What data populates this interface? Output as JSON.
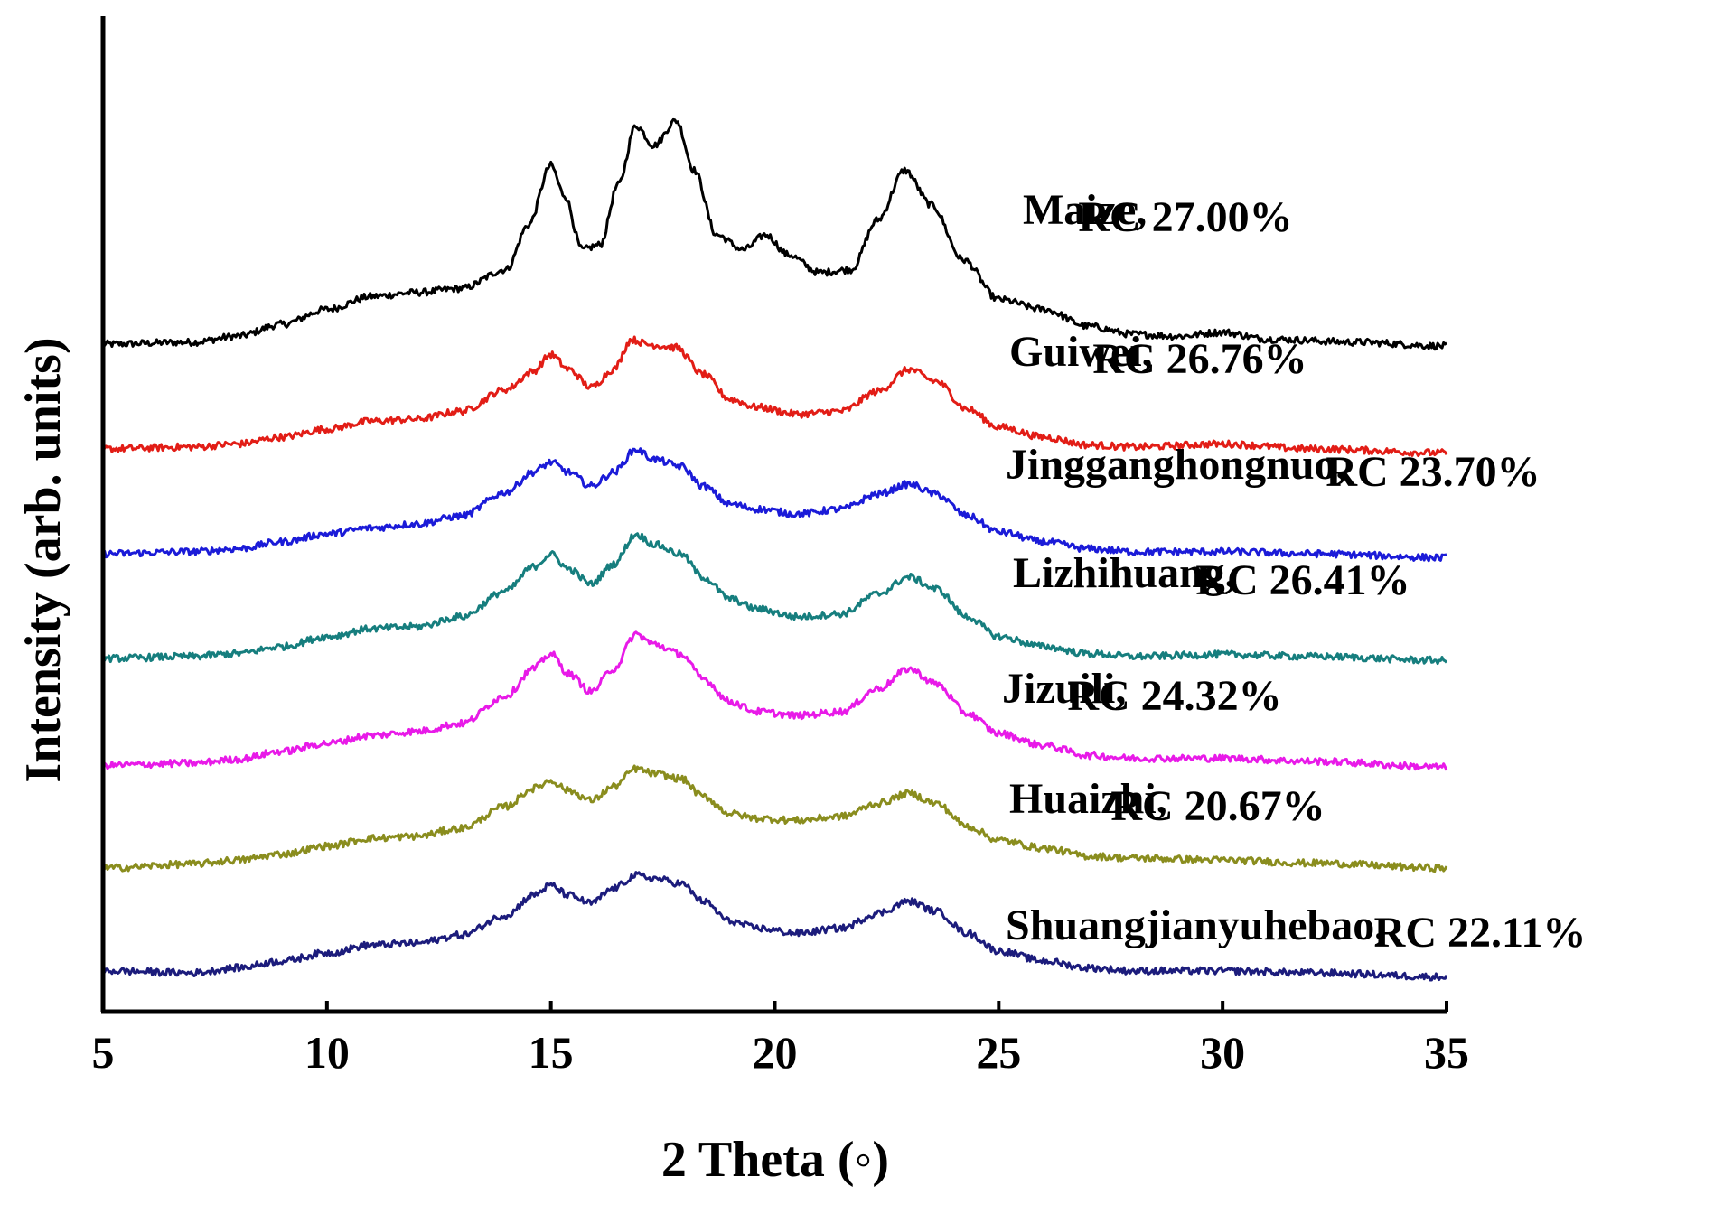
{
  "chart_data": {
    "type": "line",
    "title": "",
    "xlabel": "2 Theta (◦)",
    "ylabel": "Intensity (arb. units)",
    "xlim": [
      5,
      35
    ],
    "x_ticks": [
      "5",
      "10",
      "15",
      "20",
      "25",
      "30",
      "35"
    ],
    "y_ticks": [],
    "grid": false,
    "legend": "inline labels right of each curve",
    "layout_note": "curves are vertically offset (stacked); baseline of each curve is shifted by 1 arb. unit",
    "series": [
      {
        "name": "Maize",
        "label": "Maize,",
        "rc": "RC 27.00%",
        "color": "#000000",
        "offset": 6,
        "points": [
          [
            5,
            0.1
          ],
          [
            7,
            0.12
          ],
          [
            8,
            0.18
          ],
          [
            9,
            0.3
          ],
          [
            10,
            0.45
          ],
          [
            11,
            0.58
          ],
          [
            12,
            0.62
          ],
          [
            13,
            0.66
          ],
          [
            14,
            0.85
          ],
          [
            14.5,
            1.3
          ],
          [
            15,
            1.9
          ],
          [
            15.3,
            1.6
          ],
          [
            15.7,
            1.05
          ],
          [
            16.1,
            1.1
          ],
          [
            16.5,
            1.7
          ],
          [
            16.9,
            2.3
          ],
          [
            17.3,
            2.1
          ],
          [
            17.8,
            2.35
          ],
          [
            18.2,
            1.85
          ],
          [
            18.7,
            1.2
          ],
          [
            19.3,
            1.05
          ],
          [
            19.8,
            1.2
          ],
          [
            20.3,
            1.0
          ],
          [
            21,
            0.82
          ],
          [
            21.7,
            0.85
          ],
          [
            22.3,
            1.35
          ],
          [
            22.9,
            1.85
          ],
          [
            23.5,
            1.5
          ],
          [
            24.2,
            0.95
          ],
          [
            25,
            0.55
          ],
          [
            26,
            0.45
          ],
          [
            27,
            0.28
          ],
          [
            28,
            0.2
          ],
          [
            29,
            0.18
          ],
          [
            30,
            0.22
          ],
          [
            31,
            0.15
          ],
          [
            33,
            0.12
          ],
          [
            35,
            0.08
          ]
        ]
      },
      {
        "name": "Guiwei",
        "label": "Guiwei,",
        "rc": "RC 26.76%",
        "color": "#e21d16",
        "offset": 5,
        "points": [
          [
            5,
            0.1
          ],
          [
            7,
            0.12
          ],
          [
            8,
            0.15
          ],
          [
            9,
            0.22
          ],
          [
            10,
            0.3
          ],
          [
            11,
            0.38
          ],
          [
            12,
            0.4
          ],
          [
            13,
            0.48
          ],
          [
            14,
            0.7
          ],
          [
            14.6,
            0.88
          ],
          [
            15,
            1.05
          ],
          [
            15.4,
            0.9
          ],
          [
            15.9,
            0.72
          ],
          [
            16.4,
            0.9
          ],
          [
            16.8,
            1.2
          ],
          [
            17.2,
            1.15
          ],
          [
            17.8,
            1.12
          ],
          [
            18.4,
            0.85
          ],
          [
            19,
            0.6
          ],
          [
            19.6,
            0.52
          ],
          [
            20.5,
            0.45
          ],
          [
            21.5,
            0.48
          ],
          [
            22.3,
            0.68
          ],
          [
            23,
            0.9
          ],
          [
            23.6,
            0.78
          ],
          [
            24.3,
            0.5
          ],
          [
            25,
            0.32
          ],
          [
            26,
            0.22
          ],
          [
            27,
            0.14
          ],
          [
            28,
            0.12
          ],
          [
            30,
            0.15
          ],
          [
            32,
            0.1
          ],
          [
            35,
            0.06
          ]
        ]
      },
      {
        "name": "Jingganghongnuo",
        "label": "Jingganghongnuo,",
        "rc": "RC 23.70%",
        "color": "#1b1bd8",
        "offset": 4,
        "points": [
          [
            5,
            0.1
          ],
          [
            7,
            0.12
          ],
          [
            8,
            0.15
          ],
          [
            9,
            0.22
          ],
          [
            10,
            0.3
          ],
          [
            11,
            0.36
          ],
          [
            12,
            0.4
          ],
          [
            13,
            0.48
          ],
          [
            14,
            0.72
          ],
          [
            14.6,
            0.92
          ],
          [
            15,
            1.02
          ],
          [
            15.4,
            0.92
          ],
          [
            15.9,
            0.78
          ],
          [
            16.4,
            0.92
          ],
          [
            16.9,
            1.15
          ],
          [
            17.3,
            1.05
          ],
          [
            17.9,
            0.98
          ],
          [
            18.4,
            0.78
          ],
          [
            19,
            0.6
          ],
          [
            19.6,
            0.55
          ],
          [
            20.5,
            0.5
          ],
          [
            21.5,
            0.55
          ],
          [
            22.3,
            0.7
          ],
          [
            23,
            0.8
          ],
          [
            23.6,
            0.7
          ],
          [
            24.3,
            0.48
          ],
          [
            25,
            0.32
          ],
          [
            26,
            0.22
          ],
          [
            27,
            0.15
          ],
          [
            28,
            0.12
          ],
          [
            30,
            0.12
          ],
          [
            32,
            0.1
          ],
          [
            35,
            0.06
          ]
        ]
      },
      {
        "name": "Lizhihuang",
        "label": "Lizhihuang,",
        "rc": "RC 26.41%",
        "color": "#167e7e",
        "offset": 3,
        "points": [
          [
            5,
            0.1
          ],
          [
            7,
            0.12
          ],
          [
            8,
            0.15
          ],
          [
            9,
            0.22
          ],
          [
            10,
            0.32
          ],
          [
            11,
            0.4
          ],
          [
            12,
            0.42
          ],
          [
            13,
            0.52
          ],
          [
            14,
            0.78
          ],
          [
            14.6,
            1.02
          ],
          [
            15,
            1.15
          ],
          [
            15.4,
            1.0
          ],
          [
            15.9,
            0.85
          ],
          [
            16.4,
            1.05
          ],
          [
            16.9,
            1.35
          ],
          [
            17.3,
            1.25
          ],
          [
            17.9,
            1.15
          ],
          [
            18.4,
            0.92
          ],
          [
            19,
            0.7
          ],
          [
            19.6,
            0.6
          ],
          [
            20.5,
            0.52
          ],
          [
            21.5,
            0.55
          ],
          [
            22.3,
            0.75
          ],
          [
            23,
            0.92
          ],
          [
            23.6,
            0.8
          ],
          [
            24.3,
            0.52
          ],
          [
            25,
            0.32
          ],
          [
            26,
            0.22
          ],
          [
            27,
            0.15
          ],
          [
            28,
            0.12
          ],
          [
            30,
            0.14
          ],
          [
            32,
            0.12
          ],
          [
            35,
            0.08
          ]
        ]
      },
      {
        "name": "Jizuili",
        "label": "Jizuili,",
        "rc": "RC 24.32%",
        "color": "#e81ae8",
        "offset": 2,
        "points": [
          [
            5,
            0.08
          ],
          [
            7,
            0.1
          ],
          [
            8,
            0.14
          ],
          [
            9,
            0.22
          ],
          [
            10,
            0.3
          ],
          [
            11,
            0.38
          ],
          [
            12,
            0.42
          ],
          [
            13,
            0.5
          ],
          [
            14,
            0.78
          ],
          [
            14.6,
            1.05
          ],
          [
            15,
            1.2
          ],
          [
            15.4,
            1.0
          ],
          [
            15.9,
            0.82
          ],
          [
            16.4,
            1.05
          ],
          [
            16.9,
            1.4
          ],
          [
            17.3,
            1.3
          ],
          [
            17.9,
            1.2
          ],
          [
            18.4,
            0.95
          ],
          [
            19,
            0.72
          ],
          [
            19.6,
            0.62
          ],
          [
            20.5,
            0.58
          ],
          [
            21.5,
            0.62
          ],
          [
            22.3,
            0.85
          ],
          [
            23,
            1.05
          ],
          [
            23.6,
            0.9
          ],
          [
            24.3,
            0.6
          ],
          [
            25,
            0.4
          ],
          [
            26,
            0.28
          ],
          [
            27,
            0.18
          ],
          [
            28,
            0.15
          ],
          [
            30,
            0.15
          ],
          [
            32,
            0.12
          ],
          [
            35,
            0.06
          ]
        ]
      },
      {
        "name": "Huaizhi",
        "label": "Huaizhi,",
        "rc": "RC 20.67%",
        "color": "#8a8d1e",
        "offset": 1,
        "points": [
          [
            5,
            0.1
          ],
          [
            7,
            0.14
          ],
          [
            8,
            0.18
          ],
          [
            9,
            0.24
          ],
          [
            10,
            0.32
          ],
          [
            11,
            0.4
          ],
          [
            12,
            0.42
          ],
          [
            13,
            0.5
          ],
          [
            14,
            0.72
          ],
          [
            14.6,
            0.9
          ],
          [
            15,
            0.98
          ],
          [
            15.4,
            0.88
          ],
          [
            15.9,
            0.78
          ],
          [
            16.4,
            0.92
          ],
          [
            16.9,
            1.1
          ],
          [
            17.3,
            1.05
          ],
          [
            17.9,
            1.0
          ],
          [
            18.4,
            0.82
          ],
          [
            19,
            0.65
          ],
          [
            19.6,
            0.6
          ],
          [
            20.5,
            0.58
          ],
          [
            21.5,
            0.62
          ],
          [
            22.3,
            0.75
          ],
          [
            23,
            0.85
          ],
          [
            23.6,
            0.75
          ],
          [
            24.3,
            0.52
          ],
          [
            25,
            0.38
          ],
          [
            26,
            0.3
          ],
          [
            27,
            0.22
          ],
          [
            28,
            0.2
          ],
          [
            30,
            0.18
          ],
          [
            32,
            0.15
          ],
          [
            35,
            0.1
          ]
        ]
      },
      {
        "name": "Shuangjianyuhebao",
        "label": "Shuangjianyuhebao,",
        "rc": "RC 22.11%",
        "color": "#1c1c7c",
        "offset": 0,
        "points": [
          [
            5,
            0.12
          ],
          [
            7,
            0.1
          ],
          [
            8,
            0.15
          ],
          [
            9,
            0.22
          ],
          [
            10,
            0.3
          ],
          [
            11,
            0.38
          ],
          [
            12,
            0.4
          ],
          [
            13,
            0.48
          ],
          [
            14,
            0.68
          ],
          [
            14.6,
            0.88
          ],
          [
            15,
            0.98
          ],
          [
            15.4,
            0.88
          ],
          [
            15.9,
            0.8
          ],
          [
            16.4,
            0.95
          ],
          [
            16.9,
            1.08
          ],
          [
            17.3,
            1.05
          ],
          [
            17.9,
            1.0
          ],
          [
            18.4,
            0.82
          ],
          [
            19,
            0.62
          ],
          [
            19.6,
            0.55
          ],
          [
            20.5,
            0.5
          ],
          [
            21.5,
            0.55
          ],
          [
            22.3,
            0.7
          ],
          [
            23,
            0.82
          ],
          [
            23.6,
            0.72
          ],
          [
            24.3,
            0.5
          ],
          [
            25,
            0.32
          ],
          [
            26,
            0.22
          ],
          [
            27,
            0.15
          ],
          [
            28,
            0.12
          ],
          [
            30,
            0.12
          ],
          [
            32,
            0.1
          ],
          [
            35,
            0.06
          ]
        ]
      }
    ]
  }
}
